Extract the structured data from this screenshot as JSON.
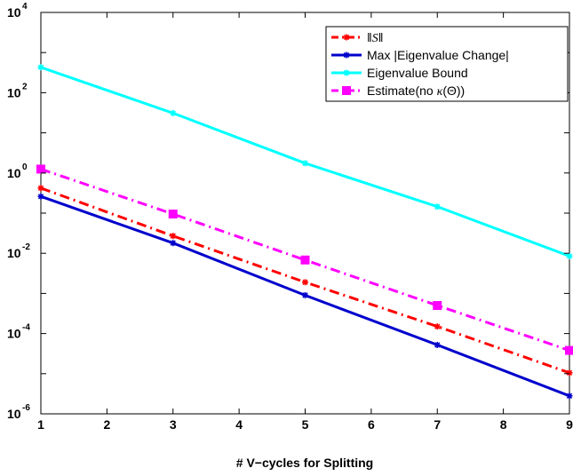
{
  "chart_data": {
    "type": "line",
    "xlabel": "# V−cycles for Splitting",
    "ylabel": "",
    "y_scale": "log",
    "xlim": [
      1,
      9
    ],
    "ylim": [
      1e-06,
      10000
    ],
    "x_ticks": [
      "1",
      "2",
      "3",
      "4",
      "5",
      "6",
      "7",
      "8",
      "9"
    ],
    "y_ticks": [
      {
        "base": "10",
        "exp": "-6",
        "value": 1e-06
      },
      {
        "base": "10",
        "exp": "-4",
        "value": 0.0001
      },
      {
        "base": "10",
        "exp": "-2",
        "value": 0.01
      },
      {
        "base": "10",
        "exp": "0",
        "value": 1
      },
      {
        "base": "10",
        "exp": "2",
        "value": 100
      },
      {
        "base": "10",
        "exp": "4",
        "value": 10000
      }
    ],
    "grid": false,
    "legend_position": "top-right",
    "x": [
      1,
      3,
      5,
      7,
      9
    ],
    "series": [
      {
        "name": "||S||",
        "legend_pre": "‖",
        "legend_italic": "S",
        "legend_post": "‖",
        "color": "#ff0000",
        "style": "dashdot",
        "marker": "star",
        "values": [
          0.42,
          0.027,
          0.0019,
          0.00015,
          1.05e-05
        ]
      },
      {
        "name": "Max |Eigenvalue Change|",
        "legend_pre": "Max |Eigenvalue Change|",
        "color": "#0000cc",
        "style": "solid",
        "marker": "star",
        "values": [
          0.26,
          0.018,
          0.0009,
          5.2e-05,
          2.8e-06
        ]
      },
      {
        "name": "Eigenvalue Bound",
        "legend_pre": "Eigenvalue Bound",
        "color": "#00ffff",
        "style": "solid",
        "marker": "star",
        "values": [
          430,
          31,
          1.75,
          0.145,
          0.0085
        ]
      },
      {
        "name": "Estimate(no κ(Θ))",
        "legend_pre": "Estimate(no ",
        "legend_italic": "κ",
        "legend_post": "(Θ))",
        "color": "#ff00ff",
        "style": "dashdot",
        "marker": "square",
        "values": [
          1.25,
          0.095,
          0.0068,
          0.0005,
          3.8e-05
        ]
      }
    ]
  }
}
